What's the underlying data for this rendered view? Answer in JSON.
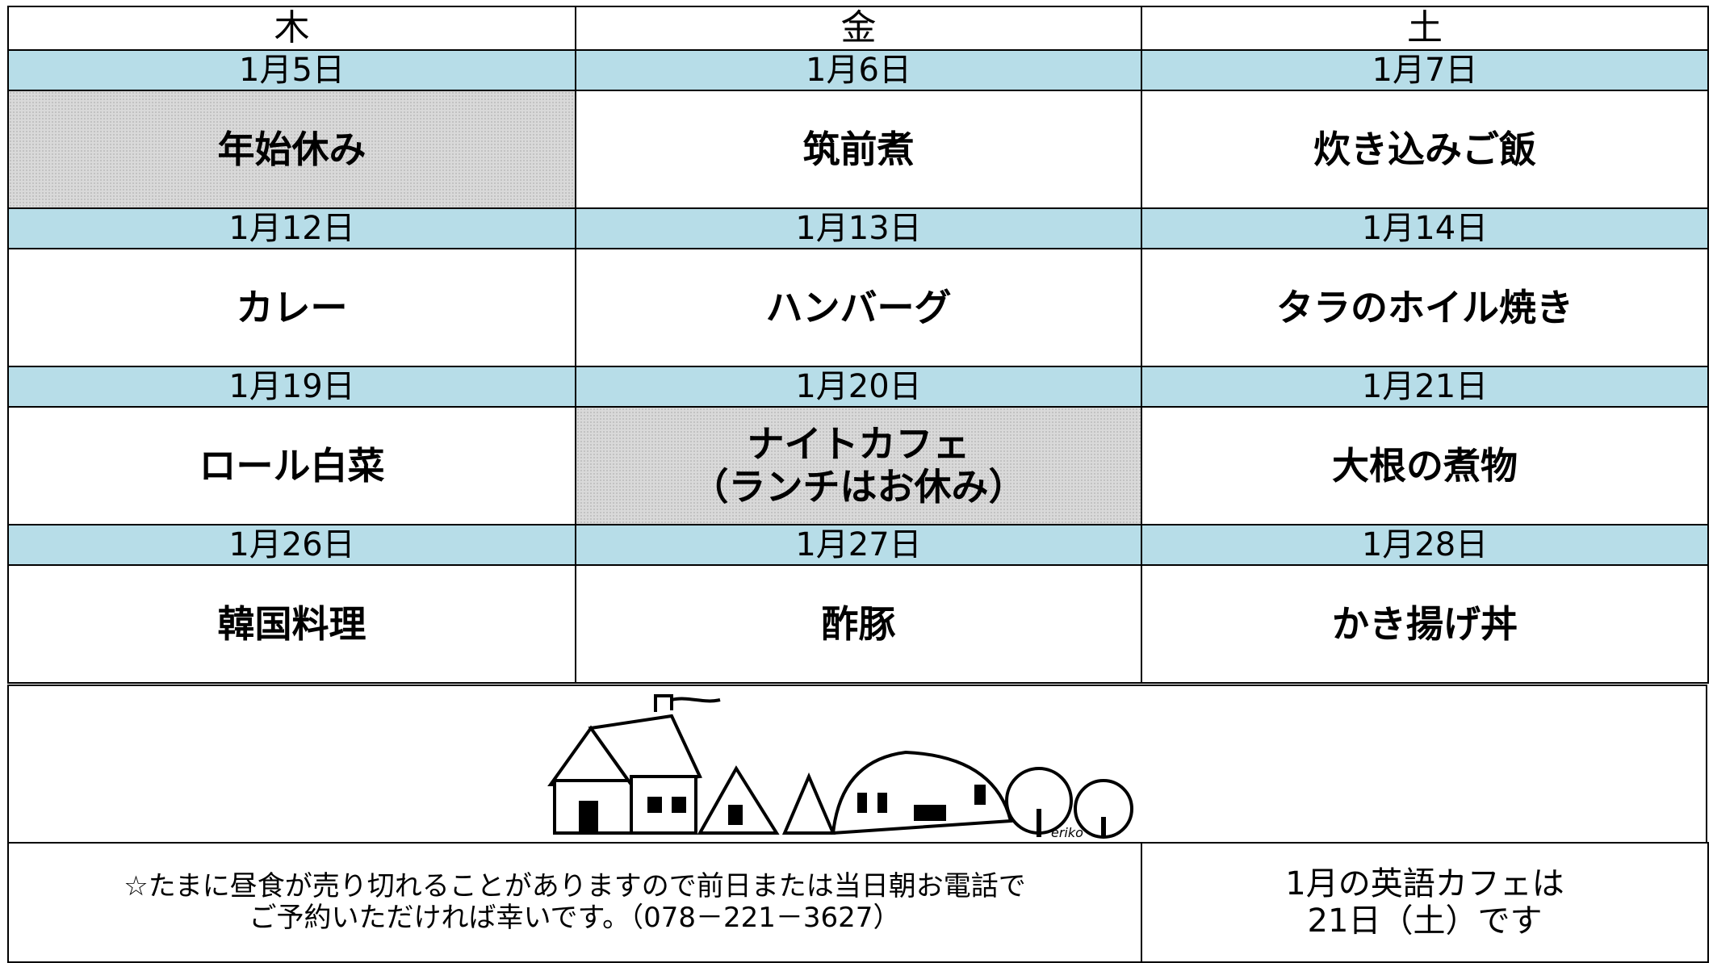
{
  "header": {
    "days": [
      "木",
      "金",
      "土"
    ]
  },
  "weeks": [
    {
      "dates": [
        "1月5日",
        "1月6日",
        "1月7日"
      ],
      "menus": [
        {
          "lines": [
            "年始休み"
          ],
          "shaded": true
        },
        {
          "lines": [
            "筑前煮"
          ],
          "shaded": false
        },
        {
          "lines": [
            "炊き込みご飯"
          ],
          "shaded": false
        }
      ]
    },
    {
      "dates": [
        "1月12日",
        "1月13日",
        "1月14日"
      ],
      "menus": [
        {
          "lines": [
            "カレー"
          ],
          "shaded": false
        },
        {
          "lines": [
            "ハンバーグ"
          ],
          "shaded": false
        },
        {
          "lines": [
            "タラのホイル焼き"
          ],
          "shaded": false
        }
      ]
    },
    {
      "dates": [
        "1月19日",
        "1月20日",
        "1月21日"
      ],
      "menus": [
        {
          "lines": [
            "ロール白菜"
          ],
          "shaded": false
        },
        {
          "lines": [
            "ナイトカフェ",
            "（ランチはお休み）"
          ],
          "shaded": true
        },
        {
          "lines": [
            "大根の煮物"
          ],
          "shaded": false
        }
      ]
    },
    {
      "dates": [
        "1月26日",
        "1月27日",
        "1月28日"
      ],
      "menus": [
        {
          "lines": [
            "韓国料理"
          ],
          "shaded": false
        },
        {
          "lines": [
            "酢豚"
          ],
          "shaded": false
        },
        {
          "lines": [
            "かき揚げ丼"
          ],
          "shaded": false
        }
      ]
    }
  ],
  "illustration": {
    "signature": "eriko"
  },
  "footer": {
    "note": {
      "lines": [
        "☆たまに昼食が売り切れることがありますので前日または当日朝お電話で",
        "ご予約いただければ幸いです。（078－221－3627）"
      ]
    },
    "english_cafe": {
      "lines": [
        "1月の英語カフェは",
        "21日（土）です"
      ]
    }
  }
}
